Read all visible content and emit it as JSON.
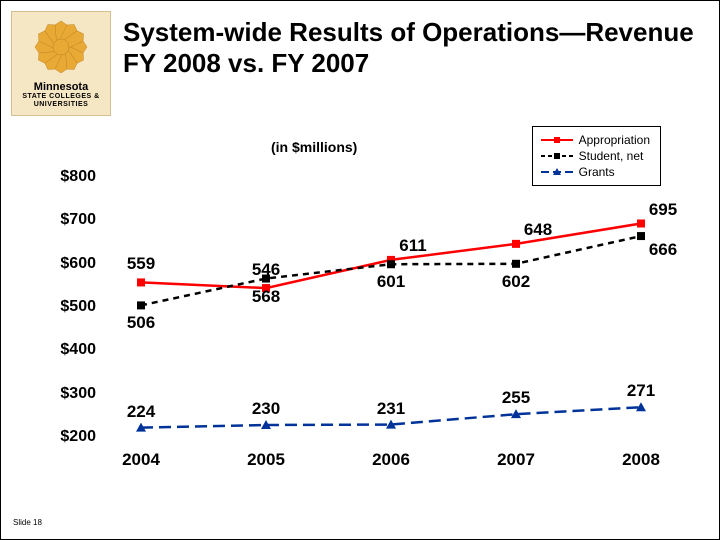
{
  "slide_number": "Slide 18",
  "logo": {
    "top": "Minnesota",
    "bottom": "STATE COLLEGES & UNIVERSITIES",
    "burst_color": "#e8a935",
    "bg_color": "#f5e6c4"
  },
  "title": "System-wide Results of Operations—Revenue FY 2008 vs. FY 2007",
  "chart": {
    "type": "line",
    "subtitle": "(in $millions)",
    "x_categories": [
      "2004",
      "2005",
      "2006",
      "2007",
      "2008"
    ],
    "y_ticks": [
      "$200",
      "$300",
      "$400",
      "$500",
      "$600",
      "$700",
      "$800"
    ],
    "ylim": [
      200,
      800
    ],
    "series": {
      "appropriation": {
        "label": "Appropriation",
        "color": "#ff0000",
        "marker": "square",
        "style": "solid",
        "values": [
          559,
          546,
          611,
          648,
          695
        ],
        "label_offset": [
          [
            0,
            -18
          ],
          [
            0,
            -18
          ],
          [
            22,
            -14
          ],
          [
            22,
            -14
          ],
          [
            22,
            -14
          ]
        ]
      },
      "student_net": {
        "label": "Student, net",
        "color": "#000000",
        "marker": "square",
        "style": "dash",
        "values": [
          506,
          568,
          601,
          602,
          666
        ],
        "label_offset": [
          [
            0,
            18
          ],
          [
            0,
            18
          ],
          [
            0,
            18
          ],
          [
            0,
            18
          ],
          [
            22,
            14
          ]
        ]
      },
      "grants": {
        "label": "Grants",
        "color": "#003399",
        "marker": "triangle",
        "style": "long-dash",
        "values": [
          224,
          230,
          231,
          255,
          271
        ],
        "label_offset": [
          [
            0,
            -16
          ],
          [
            0,
            -16
          ],
          [
            0,
            -16
          ],
          [
            0,
            -16
          ],
          [
            0,
            -16
          ]
        ]
      }
    },
    "legend_order": [
      "appropriation",
      "student_net",
      "grants"
    ],
    "background_color": "#ffffff",
    "axis_font_size": 16,
    "label_font_size": 17
  }
}
